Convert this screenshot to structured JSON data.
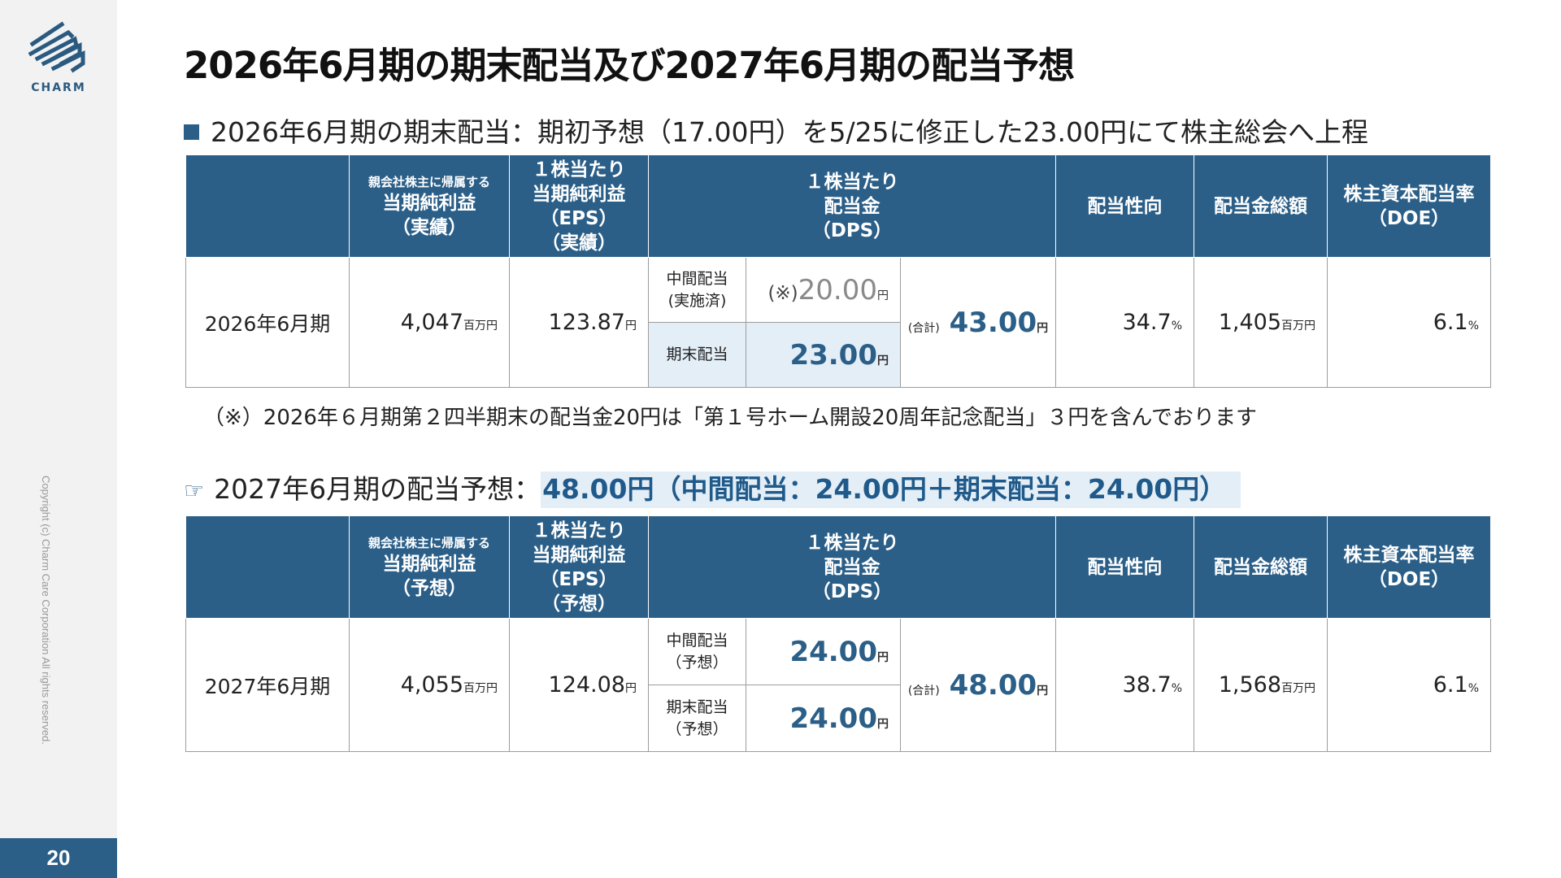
{
  "brand": {
    "logo_text": "CHARM",
    "accent": "#2b5f88"
  },
  "copyright": "Copyright (c) Charm Care Corporation All rights reserved.",
  "page_number": "20",
  "title": "2026年6月期の期末配当及び2027年6月期の配当予想",
  "section1": "2026年6月期の期末配当：期初予想（17.00円）を5/25に修正した23.00円にて株主総会へ上程",
  "note": "（※）2026年６月期第２四半期末の配当金20円は「第１号ホーム開設20周年記念配当」３円を含んでおります",
  "section2": {
    "prefix": "2027年6月期の配当予想：",
    "highlight": "48.00円（中間配当：24.00円＋期末配当：24.00円）"
  },
  "table1": {
    "h_net_small": "親会社株主に帰属する",
    "h_net_main": "当期純利益",
    "h_net_sub": "（実績）",
    "h_eps_1": "１株当たり",
    "h_eps_2": "当期純利益",
    "h_eps_3": "（EPS）",
    "h_eps_4": "（実績）",
    "h_dps_1": "１株当たり",
    "h_dps_2": "配当金",
    "h_dps_3": "（DPS）",
    "h_payout": "配当性向",
    "h_total": "配当金総額",
    "h_doe_1": "株主資本配当率",
    "h_doe_2": "（DOE）",
    "period": "2026年6月期",
    "net_income": "4,047",
    "net_income_unit": "百万円",
    "eps": "123.87",
    "eps_unit": "円",
    "interim_label_1": "中間配当",
    "interim_label_2": "(実施済)",
    "interim_prefix": "(※)",
    "interim_value": "20.00",
    "interim_unit": "円",
    "final_label": "期末配当",
    "final_value": "23.00",
    "final_unit": "円",
    "total_prefix": "(合計)",
    "total_value": "43.00",
    "total_unit": "円",
    "payout": "34.7",
    "payout_unit": "%",
    "dividend_total": "1,405",
    "dividend_total_unit": "百万円",
    "doe": "6.1",
    "doe_unit": "%"
  },
  "table2": {
    "h_net_small": "親会社株主に帰属する",
    "h_net_main": "当期純利益",
    "h_net_sub": "（予想）",
    "h_eps_1": "１株当たり",
    "h_eps_2": "当期純利益",
    "h_eps_3": "（EPS）",
    "h_eps_4": "（予想）",
    "h_dps_1": "１株当たり",
    "h_dps_2": "配当金",
    "h_dps_3": "（DPS）",
    "h_payout": "配当性向",
    "h_total": "配当金総額",
    "h_doe_1": "株主資本配当率",
    "h_doe_2": "（DOE）",
    "period": "2027年6月期",
    "net_income": "4,055",
    "net_income_unit": "百万円",
    "eps": "124.08",
    "eps_unit": "円",
    "interim_label_1": "中間配当",
    "interim_label_2": "（予想）",
    "interim_value": "24.00",
    "interim_unit": "円",
    "final_label_1": "期末配当",
    "final_label_2": "（予想）",
    "final_value": "24.00",
    "final_unit": "円",
    "total_prefix": "(合計)",
    "total_value": "48.00",
    "total_unit": "円",
    "payout": "38.7",
    "payout_unit": "%",
    "dividend_total": "1,568",
    "dividend_total_unit": "百万円",
    "doe": "6.1",
    "doe_unit": "%"
  }
}
